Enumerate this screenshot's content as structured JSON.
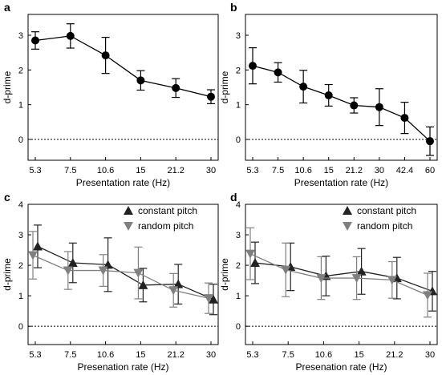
{
  "chart_data": [
    {
      "panel": "a",
      "type": "line",
      "xlabel": "Presentation rate (Hz)",
      "ylabel": "d-prime",
      "x_ticks": [
        "5.3",
        "7.5",
        "10.6",
        "15",
        "21.2",
        "30"
      ],
      "y_ticks": [
        "0",
        "1",
        "2",
        "3"
      ],
      "ylim": [
        -0.6,
        3.6
      ],
      "zero_line": true,
      "series": [
        {
          "marker": "circle",
          "color": "#000000",
          "values": [
            2.85,
            2.98,
            2.42,
            1.7,
            1.48,
            1.23
          ],
          "err": [
            0.25,
            0.35,
            0.52,
            0.28,
            0.27,
            0.2
          ]
        }
      ]
    },
    {
      "panel": "b",
      "type": "line",
      "xlabel": "Presentation rate (Hz)",
      "ylabel": "d-prime",
      "x_ticks": [
        "5.3",
        "7.5",
        "10.6",
        "15",
        "21.2",
        "30",
        "42.4",
        "60"
      ],
      "y_ticks": [
        "0",
        "1",
        "2",
        "3"
      ],
      "ylim": [
        -0.6,
        3.6
      ],
      "zero_line": true,
      "series": [
        {
          "marker": "circle",
          "color": "#000000",
          "values": [
            2.12,
            1.93,
            1.52,
            1.27,
            0.98,
            0.93,
            0.62,
            -0.05
          ],
          "err": [
            0.52,
            0.28,
            0.47,
            0.31,
            0.22,
            0.53,
            0.45,
            0.41
          ]
        }
      ]
    },
    {
      "panel": "c",
      "type": "line",
      "xlabel": "Presenation rate (Hz)",
      "ylabel": "d-prime",
      "x_ticks": [
        "5.3",
        "7.5",
        "10.6",
        "15",
        "21.2",
        "30"
      ],
      "y_ticks": [
        "0",
        "1",
        "2",
        "3",
        "4"
      ],
      "ylim": [
        -0.6,
        4.0
      ],
      "zero_line": true,
      "legend": {
        "position": "top-right"
      },
      "series": [
        {
          "name": "constant pitch",
          "marker": "triangle-up",
          "color": "#222222",
          "values": [
            2.62,
            2.08,
            2.02,
            1.35,
            1.38,
            0.88
          ],
          "err": [
            0.7,
            0.65,
            0.88,
            0.55,
            0.65,
            0.5
          ]
        },
        {
          "name": "random pitch",
          "marker": "triangle-down",
          "color": "#808080",
          "values": [
            2.33,
            1.83,
            1.83,
            1.75,
            1.18,
            0.92
          ],
          "err": [
            0.78,
            0.62,
            0.52,
            0.85,
            0.55,
            0.5
          ]
        }
      ]
    },
    {
      "panel": "d",
      "type": "line",
      "xlabel": "Presenation rate (Hz)",
      "ylabel": "d-prime",
      "x_ticks": [
        "5.3",
        "7.5",
        "10.6",
        "15",
        "21.2",
        "30"
      ],
      "y_ticks": [
        "0",
        "1",
        "2",
        "3",
        "4"
      ],
      "ylim": [
        -0.6,
        4.0
      ],
      "zero_line": true,
      "legend": {
        "position": "top-right"
      },
      "series": [
        {
          "name": "constant pitch",
          "marker": "triangle-up",
          "color": "#222222",
          "values": [
            2.08,
            1.95,
            1.65,
            1.8,
            1.58,
            1.15
          ],
          "err": [
            0.68,
            0.78,
            0.65,
            0.75,
            0.68,
            0.65
          ]
        },
        {
          "name": "random pitch",
          "marker": "triangle-down",
          "color": "#808080",
          "values": [
            2.38,
            1.85,
            1.58,
            1.58,
            1.52,
            1.02
          ],
          "err": [
            0.85,
            0.88,
            0.7,
            0.7,
            0.6,
            0.72
          ]
        }
      ]
    }
  ]
}
